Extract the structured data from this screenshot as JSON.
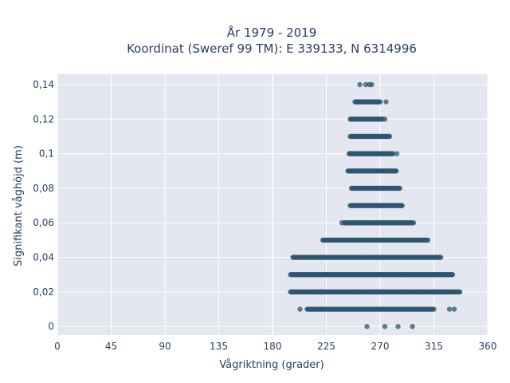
{
  "chart_data": {
    "type": "scatter",
    "title_line1": "År 1979 - 2019",
    "title_line2": "Koordinat (Sweref 99 TM): E 339133, N 6314996",
    "xlabel": "Vågriktning (grader)",
    "ylabel": "Signifikant våghöjd (m)",
    "xlim": [
      0,
      360
    ],
    "ylim": [
      -0.005,
      0.146
    ],
    "x_ticks": [
      0,
      45,
      90,
      135,
      180,
      225,
      270,
      315,
      360
    ],
    "x_tick_labels": [
      "0",
      "45",
      "90",
      "135",
      "180",
      "225",
      "270",
      "315",
      "360"
    ],
    "y_ticks": [
      0,
      0.02,
      0.04,
      0.06,
      0.08,
      0.1,
      0.12,
      0.14
    ],
    "y_tick_labels": [
      "0",
      "0,02",
      "0,04",
      "0,06",
      "0,08",
      "0,1",
      "0,12",
      "0,14"
    ],
    "grid": true,
    "marker_color": "#2e5670",
    "plot_background": "#e5e7f0",
    "bands": [
      {
        "y": 0.0,
        "points": [
          259,
          274,
          285,
          297
        ]
      },
      {
        "y": 0.01,
        "x_range": [
          209,
          314
        ],
        "outliers": [
          203,
          315,
          328,
          332
        ]
      },
      {
        "y": 0.02,
        "x_range": [
          195,
          337
        ],
        "outliers": []
      },
      {
        "y": 0.03,
        "x_range": [
          195,
          331
        ],
        "outliers": []
      },
      {
        "y": 0.04,
        "x_range": [
          197,
          321
        ],
        "outliers": []
      },
      {
        "y": 0.05,
        "x_range": [
          222,
          309
        ],
        "outliers": [
          310
        ]
      },
      {
        "y": 0.06,
        "x_range": [
          240,
          297
        ],
        "outliers": [
          238,
          298
        ]
      },
      {
        "y": 0.07,
        "x_range": [
          245,
          289
        ],
        "outliers": []
      },
      {
        "y": 0.08,
        "x_range": [
          246,
          287
        ],
        "outliers": []
      },
      {
        "y": 0.09,
        "x_range": [
          243,
          284
        ],
        "outliers": []
      },
      {
        "y": 0.1,
        "x_range": [
          244,
          281
        ],
        "outliers": [
          284
        ]
      },
      {
        "y": 0.11,
        "x_range": [
          245,
          278
        ],
        "outliers": []
      },
      {
        "y": 0.12,
        "x_range": [
          245,
          272
        ],
        "outliers": [
          274
        ]
      },
      {
        "y": 0.13,
        "x_range": [
          249,
          270
        ],
        "outliers": [
          275
        ]
      },
      {
        "y": 0.14,
        "points": [
          253,
          258,
          261,
          263
        ]
      }
    ]
  }
}
